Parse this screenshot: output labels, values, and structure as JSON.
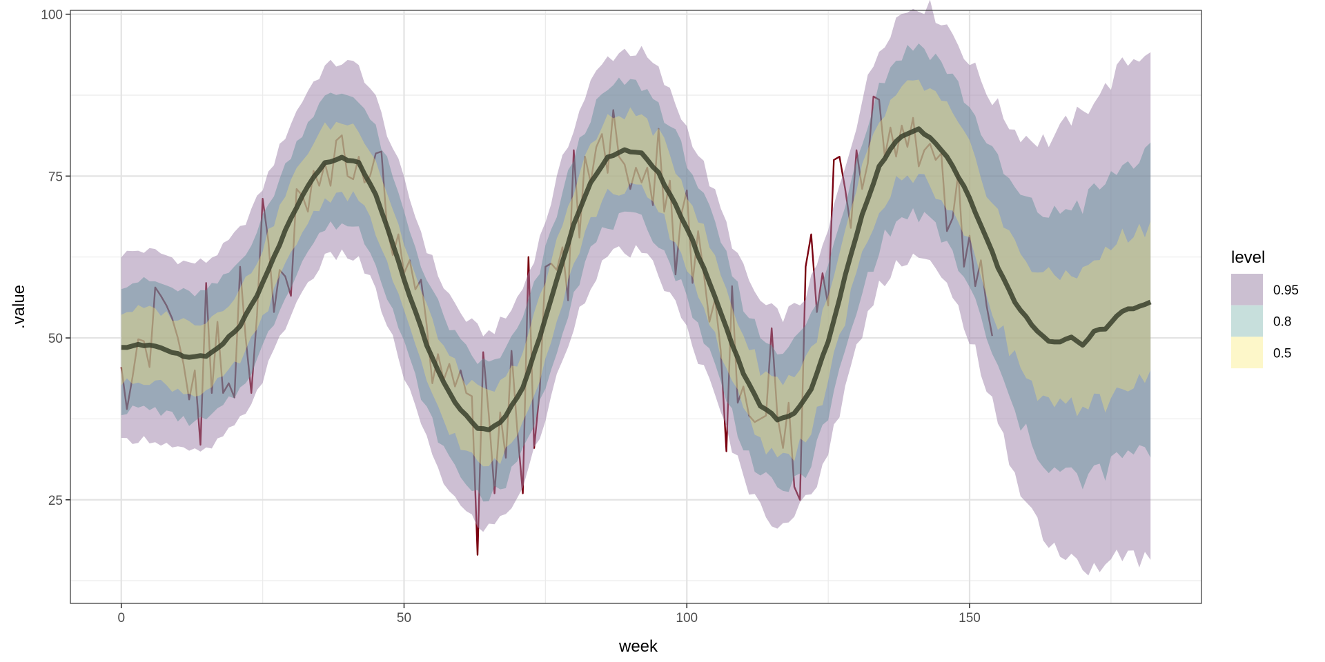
{
  "chart_data": {
    "type": "area",
    "title": "",
    "xlabel": "week",
    "ylabel": ".value",
    "xlim": [
      -9,
      191
    ],
    "ylim": [
      9.0,
      100.6
    ],
    "x_ticks": [
      0,
      50,
      100,
      150
    ],
    "x_tick_labels": [
      "0",
      "50",
      "100",
      "150"
    ],
    "y_ticks": [
      25,
      50,
      75,
      100
    ],
    "y_tick_labels": [
      "25",
      "50",
      "75",
      "100"
    ],
    "x_minor": [
      25,
      75,
      125,
      175
    ],
    "y_minor": [
      12.5,
      37.5,
      62.5,
      87.5
    ],
    "grid": true,
    "legend": {
      "title": "level",
      "position": "right",
      "entries": [
        {
          "label": "0.95",
          "color": "#cbbfd1"
        },
        {
          "label": "0.8",
          "color": "#c7dfdc"
        },
        {
          "label": "0.5",
          "color": "#fdf7c9"
        }
      ]
    },
    "colors": {
      "band_95": "#9b7fa8",
      "band_80": "#5e8f96",
      "band_50": "#f1e27a",
      "median": "#3a3f2c",
      "observed": "#7a0010"
    },
    "median_knots": {
      "x": [
        0,
        3,
        6,
        9,
        12,
        15,
        18,
        21,
        24,
        27,
        30,
        33,
        36,
        39,
        42,
        45,
        48,
        51,
        54,
        57,
        60,
        63,
        65,
        68,
        71,
        74,
        77,
        80,
        83,
        86,
        89,
        92,
        95,
        98,
        101,
        104,
        107,
        110,
        113,
        116,
        119,
        122,
        125,
        128,
        131,
        134,
        137,
        140,
        141,
        143,
        146,
        149,
        152,
        155,
        158,
        161,
        164,
        166,
        168,
        170,
        172,
        174,
        176,
        178,
        180,
        182
      ],
      "y": [
        48.4,
        49.0,
        48.8,
        47.8,
        46.9,
        47.2,
        49.2,
        52.0,
        56.5,
        62.5,
        68.5,
        73.5,
        77.0,
        77.8,
        77.0,
        72.0,
        64.5,
        56.5,
        49.0,
        43.0,
        38.8,
        36.2,
        35.7,
        37.8,
        42.5,
        50.0,
        59.0,
        67.5,
        74.0,
        77.8,
        79.0,
        78.5,
        75.5,
        70.5,
        65.0,
        58.5,
        51.5,
        44.5,
        39.5,
        37.5,
        38.3,
        42.0,
        49.5,
        59.5,
        69.0,
        76.5,
        80.5,
        82.0,
        82.2,
        81.0,
        78.0,
        73.5,
        67.5,
        61.0,
        55.5,
        52.0,
        49.5,
        49.3,
        50.0,
        48.8,
        51.2,
        51.5,
        53.5,
        54.5,
        54.8,
        55.5
      ]
    },
    "half_widths": {
      "x": [
        0,
        30,
        60,
        90,
        120,
        150,
        160,
        170,
        182
      ],
      "level_0.5": [
        5.5,
        5.5,
        5.6,
        5.8,
        6.0,
        7.5,
        9.0,
        11.0,
        12.0
      ],
      "level_0.8": [
        9.8,
        10.0,
        10.2,
        10.5,
        11.0,
        14.0,
        18.0,
        21.5,
        23.0
      ],
      "level_0.95": [
        14.5,
        14.8,
        15.0,
        15.5,
        16.0,
        21.0,
        28.0,
        35.5,
        39.5
      ]
    },
    "observed": {
      "x_start": 0,
      "values": [
        45.5,
        39.0,
        44.0,
        49.8,
        49.5,
        45.5,
        57.8,
        56.5,
        55.0,
        53.0,
        50.0,
        46.0,
        40.5,
        45.0,
        33.5,
        58.5,
        41.5,
        52.5,
        41.5,
        43.0,
        40.8,
        61.0,
        50.0,
        41.5,
        53.5,
        71.5,
        65.0,
        54.0,
        60.5,
        59.5,
        56.5,
        73.0,
        72.0,
        69.5,
        75.8,
        73.5,
        77.0,
        73.5,
        80.5,
        81.3,
        75.0,
        74.5,
        78.0,
        74.0,
        75.0,
        78.5,
        78.8,
        67.0,
        62.8,
        66.0,
        60.0,
        62.0,
        57.5,
        59.0,
        52.0,
        43.0,
        47.5,
        43.5,
        46.0,
        42.5,
        45.0,
        41.5,
        41.0,
        16.5,
        47.8,
        38.0,
        26.0,
        38.5,
        31.5,
        48.0,
        36.0,
        26.0,
        62.5,
        33.0,
        42.0,
        61.0,
        61.5,
        60.5,
        64.0,
        55.8,
        79.0,
        65.5,
        78.0,
        74.0,
        79.5,
        81.5,
        75.5,
        85.2,
        78.0,
        76.8,
        73.0,
        76.3,
        74.0,
        76.3,
        70.5,
        82.3,
        69.5,
        74.3,
        59.8,
        69.0,
        72.8,
        58.5,
        66.5,
        60.0,
        52.5,
        56.0,
        48.0,
        32.5,
        58.0,
        40.0,
        42.5,
        38.0,
        37.0,
        37.5,
        38.0,
        51.5,
        38.0,
        33.0,
        40.0,
        27.0,
        25.0,
        61.0,
        66.0,
        54.0,
        60.0,
        55.0,
        77.5,
        78.0,
        73.0,
        67.0,
        79.0,
        73.0,
        77.0,
        87.3,
        86.8,
        78.0,
        82.5,
        78.0,
        82.8,
        79.5,
        84.0,
        76.5,
        79.0,
        80.0,
        77.5,
        78.5,
        66.5,
        68.5,
        75.5,
        61.0,
        65.8,
        58.0,
        62.0,
        55.0,
        50.3
      ]
    }
  }
}
